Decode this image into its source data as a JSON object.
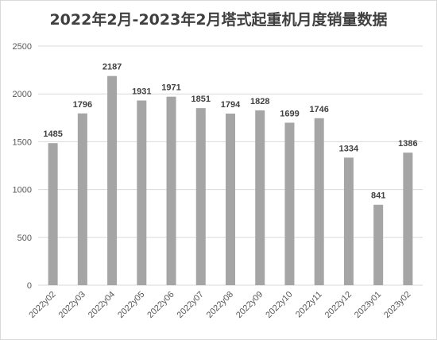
{
  "chart_data": {
    "type": "bar",
    "title": "2022年2月-2023年2月塔式起重机月度销量数据",
    "categories": [
      "2022y02",
      "2022y03",
      "2022y04",
      "2022y05",
      "2022y06",
      "2022y07",
      "2022y08",
      "2022y09",
      "2022y10",
      "2022y11",
      "2022y12",
      "2023y01",
      "2023y02"
    ],
    "values": [
      1485,
      1796,
      2187,
      1931,
      1971,
      1851,
      1794,
      1828,
      1699,
      1746,
      1334,
      841,
      1386
    ],
    "ylim": [
      0,
      2500
    ],
    "yticks": [
      0,
      500,
      1000,
      1500,
      2000,
      2500
    ],
    "grid": true,
    "legend": "none",
    "bar_color": "#a5a5a5",
    "grid_color": "#d9d9d9"
  }
}
